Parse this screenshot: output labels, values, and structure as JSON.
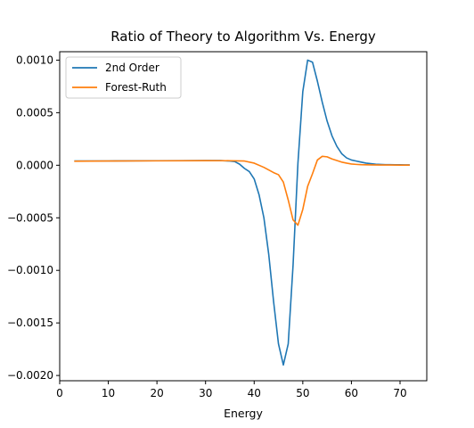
{
  "chart_data": {
    "type": "line",
    "title": "Ratio of Theory to Algorithm Vs. Energy",
    "xlabel": "Energy",
    "ylabel": "",
    "xlim": [
      0,
      75.5
    ],
    "ylim": [
      -0.00205,
      0.00108
    ],
    "xticks": [
      0,
      10,
      20,
      30,
      40,
      50,
      60,
      70
    ],
    "xtick_labels": [
      "0",
      "10",
      "20",
      "30",
      "40",
      "50",
      "60",
      "70"
    ],
    "yticks": [
      0.001,
      0.0005,
      0.0,
      -0.0005,
      -0.001,
      -0.0015,
      -0.002
    ],
    "ytick_labels": [
      "0.0010",
      "0.0005",
      "0.0000",
      "−0.0005",
      "−0.0010",
      "−0.0015",
      "−0.0020"
    ],
    "legend_position": "top-left",
    "grid": false,
    "series": [
      {
        "name": "2nd Order",
        "color": "#1f77b4",
        "x": [
          3,
          10,
          20,
          30,
          33,
          35,
          36,
          37,
          38,
          39,
          40,
          41,
          42,
          43,
          44,
          45,
          46,
          47,
          48,
          49,
          50,
          51,
          52,
          53,
          54,
          55,
          56,
          57,
          58,
          59,
          60,
          61,
          62,
          63,
          64,
          65,
          66,
          67,
          68,
          69,
          70,
          71,
          72
        ],
        "y": [
          4e-05,
          4.1e-05,
          4.3e-05,
          4.5e-05,
          4.5e-05,
          4e-05,
          3.5e-05,
          1e-05,
          -3e-05,
          -6e-05,
          -0.00013,
          -0.00028,
          -0.0005,
          -0.00085,
          -0.0013,
          -0.0017,
          -0.0019,
          -0.0017,
          -0.00095,
          2e-05,
          0.0007,
          0.001,
          0.00098,
          0.0008,
          0.0006,
          0.00042,
          0.00028,
          0.00018,
          0.00011,
          7e-05,
          5e-05,
          4e-05,
          3e-05,
          2e-05,
          1.5e-05,
          1e-05,
          8e-06,
          6e-06,
          5e-06,
          4e-06,
          4e-06,
          3e-06,
          3e-06
        ]
      },
      {
        "name": "Forest-Ruth",
        "color": "#ff7f0e",
        "x": [
          3,
          10,
          20,
          30,
          35,
          38,
          40,
          42,
          44,
          45,
          46,
          47,
          48,
          49,
          50,
          51,
          52,
          53,
          54,
          55,
          56,
          57,
          58,
          59,
          60,
          61,
          62,
          64,
          66,
          68,
          70,
          72
        ],
        "y": [
          3.8e-05,
          4e-05,
          4.2e-05,
          4.4e-05,
          4.3e-05,
          4e-05,
          2e-05,
          -2e-05,
          -7e-05,
          -9e-05,
          -0.00016,
          -0.00033,
          -0.00052,
          -0.00057,
          -0.00042,
          -0.0002,
          -8e-05,
          5e-05,
          8.5e-05,
          8e-05,
          6e-05,
          4.5e-05,
          3e-05,
          2e-05,
          1.2e-05,
          8e-06,
          5e-06,
          3e-06,
          2e-06,
          2e-06,
          1e-06,
          1e-06
        ]
      }
    ]
  }
}
